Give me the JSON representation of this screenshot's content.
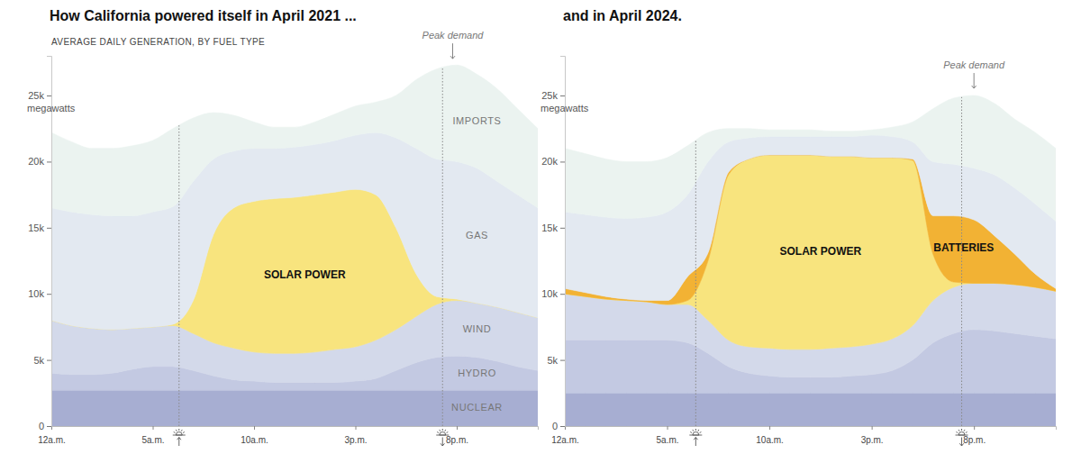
{
  "chart_data": [
    {
      "type": "area",
      "stacked": true,
      "title": "How California powered itself in April 2021 ...",
      "subtitle": "AVERAGE DAILY GENERATION, BY FUEL TYPE",
      "ylabel": "megawatts",
      "x": [
        0,
        1,
        2,
        3,
        4,
        5,
        6,
        7,
        8,
        9,
        10,
        11,
        12,
        13,
        14,
        15,
        16,
        17,
        18,
        19,
        20,
        21,
        22,
        23,
        24
      ],
      "xlim": [
        0,
        24
      ],
      "xticks": [
        {
          "value": 0,
          "label": "12a.m."
        },
        {
          "value": 5,
          "label": "5a.m."
        },
        {
          "value": 10,
          "label": "10a.m."
        },
        {
          "value": 15,
          "label": "3p.m."
        },
        {
          "value": 20,
          "label": "8p.m."
        }
      ],
      "ylim": [
        0,
        28000
      ],
      "yticks": [
        0,
        {
          "value": 5000,
          "label": "5k"
        },
        {
          "value": 10000,
          "label": "10k"
        },
        {
          "value": 15000,
          "label": "15k"
        },
        {
          "value": 20000,
          "label": "20k"
        },
        {
          "value": 25000,
          "label": "25k"
        }
      ],
      "grid": false,
      "sunrise": 6.3,
      "sunset": 19.3,
      "annotations": [
        {
          "text": "Peak demand",
          "x": 19.8
        }
      ],
      "series": [
        {
          "name": "NUCLEAR",
          "color": "#a7aed2",
          "values": [
            2700,
            2700,
            2700,
            2700,
            2700,
            2700,
            2700,
            2700,
            2700,
            2700,
            2700,
            2700,
            2700,
            2700,
            2700,
            2700,
            2700,
            2700,
            2700,
            2700,
            2700,
            2700,
            2700,
            2700,
            2700
          ]
        },
        {
          "name": "HYDRO",
          "color": "#c3c9e2",
          "values": [
            1300,
            1200,
            1200,
            1300,
            1600,
            1800,
            1800,
            1500,
            1100,
            800,
            700,
            600,
            600,
            600,
            600,
            700,
            900,
            1500,
            2100,
            2500,
            2600,
            2500,
            2200,
            1800,
            1500
          ]
        },
        {
          "name": "WIND",
          "color": "#d3d9ea",
          "values": [
            4000,
            3700,
            3500,
            3300,
            3100,
            3000,
            3100,
            2800,
            2500,
            2400,
            2200,
            2200,
            2200,
            2300,
            2500,
            2600,
            2900,
            3100,
            3500,
            4000,
            4200,
            4100,
            4100,
            4100,
            4000
          ]
        },
        {
          "name": "SOLAR POWER",
          "color": "#f8e47e",
          "values": [
            0,
            0,
            0,
            0,
            0,
            0,
            100,
            2500,
            8200,
            10600,
            11400,
            11700,
            11800,
            11900,
            11900,
            11900,
            11000,
            7700,
            3200,
            600,
            100,
            0,
            0,
            0,
            0
          ]
        },
        {
          "name": "GAS",
          "color": "#e3e9f1",
          "values": [
            8500,
            8600,
            8600,
            8600,
            8500,
            8700,
            8900,
            9000,
            5700,
            4300,
            4000,
            3800,
            3800,
            3800,
            3900,
            4100,
            4700,
            6800,
            9500,
            10400,
            10400,
            10200,
            9500,
            8900,
            8300
          ]
        },
        {
          "name": "IMPORTS",
          "color": "#ebf3f0",
          "values": [
            5700,
            5300,
            5000,
            5100,
            5300,
            5400,
            5900,
            4800,
            3500,
            2700,
            2000,
            1600,
            1500,
            1700,
            2000,
            2200,
            2300,
            3200,
            5200,
            6800,
            7300,
            7100,
            7000,
            6500,
            6000
          ]
        }
      ]
    },
    {
      "type": "area",
      "stacked": true,
      "title": "and in April 2024.",
      "ylabel": "megawatts",
      "x": [
        0,
        1,
        2,
        3,
        4,
        5,
        6,
        7,
        8,
        9,
        10,
        11,
        12,
        13,
        14,
        15,
        16,
        17,
        18,
        19,
        20,
        21,
        22,
        23,
        24
      ],
      "xlim": [
        0,
        24
      ],
      "xticks": [
        {
          "value": 0,
          "label": "12a.m."
        },
        {
          "value": 5,
          "label": "5a.m."
        },
        {
          "value": 10,
          "label": "10a.m."
        },
        {
          "value": 15,
          "label": "3p.m."
        },
        {
          "value": 20,
          "label": "8p.m."
        }
      ],
      "ylim": [
        0,
        28000
      ],
      "yticks": [
        0,
        {
          "value": 5000,
          "label": "5k"
        },
        {
          "value": 10000,
          "label": "10k"
        },
        {
          "value": 15000,
          "label": "15k"
        },
        {
          "value": 20000,
          "label": "20k"
        },
        {
          "value": 25000,
          "label": "25k"
        }
      ],
      "grid": false,
      "sunrise": 6.4,
      "sunset": 19.4,
      "annotations": [
        {
          "text": "Peak demand",
          "x": 20.0
        }
      ],
      "series": [
        {
          "color": "#a7aed2",
          "values": [
            2500,
            2500,
            2500,
            2500,
            2500,
            2500,
            2500,
            2500,
            2500,
            2500,
            2500,
            2500,
            2500,
            2500,
            2500,
            2500,
            2500,
            2500,
            2500,
            2500,
            2500,
            2500,
            2500,
            2500,
            2500
          ]
        },
        {
          "color": "#c3c9e2",
          "values": [
            4000,
            4000,
            4000,
            4000,
            4000,
            4000,
            3800,
            3000,
            2000,
            1500,
            1300,
            1200,
            1200,
            1200,
            1300,
            1400,
            1700,
            2500,
            3800,
            4500,
            4800,
            4700,
            4500,
            4300,
            4100
          ]
        },
        {
          "color": "#d3d9ea",
          "values": [
            3500,
            3300,
            3100,
            3000,
            2900,
            2700,
            2900,
            2500,
            2000,
            2000,
            2100,
            2100,
            2100,
            2200,
            2200,
            2300,
            2400,
            2600,
            3200,
            3500,
            3500,
            3600,
            3700,
            3700,
            3600
          ]
        },
        {
          "name": "SOLAR POWER",
          "color": "#f8e47e",
          "values": [
            0,
            0,
            0,
            0,
            0,
            0,
            300,
            4500,
            12500,
            14200,
            14600,
            14700,
            14700,
            14500,
            14400,
            14100,
            13700,
            12500,
            3500,
            400,
            0,
            0,
            0,
            0,
            0
          ]
        },
        {
          "name": "BATTERIES",
          "color": "#f2b234",
          "values": [
            400,
            300,
            200,
            100,
            100,
            300,
            1800,
            600,
            200,
            0,
            0,
            0,
            0,
            0,
            0,
            0,
            0,
            100,
            2900,
            5000,
            4800,
            3600,
            2300,
            1000,
            200
          ]
        },
        {
          "color": "#e3e9f1",
          "values": [
            5800,
            5900,
            6000,
            6100,
            6300,
            6700,
            6200,
            6900,
            2300,
            1600,
            1400,
            1400,
            1400,
            1500,
            1500,
            1700,
            1600,
            1300,
            4100,
            3900,
            3900,
            4600,
            5000,
            5300,
            5100
          ]
        },
        {
          "color": "#ebf3f0",
          "values": [
            4800,
            4600,
            4400,
            4300,
            4200,
            4100,
            3700,
            2200,
            1000,
            700,
            500,
            500,
            500,
            400,
            400,
            400,
            700,
            1500,
            4000,
            5000,
            5500,
            5400,
            5200,
            5400,
            5500
          ]
        }
      ]
    }
  ]
}
